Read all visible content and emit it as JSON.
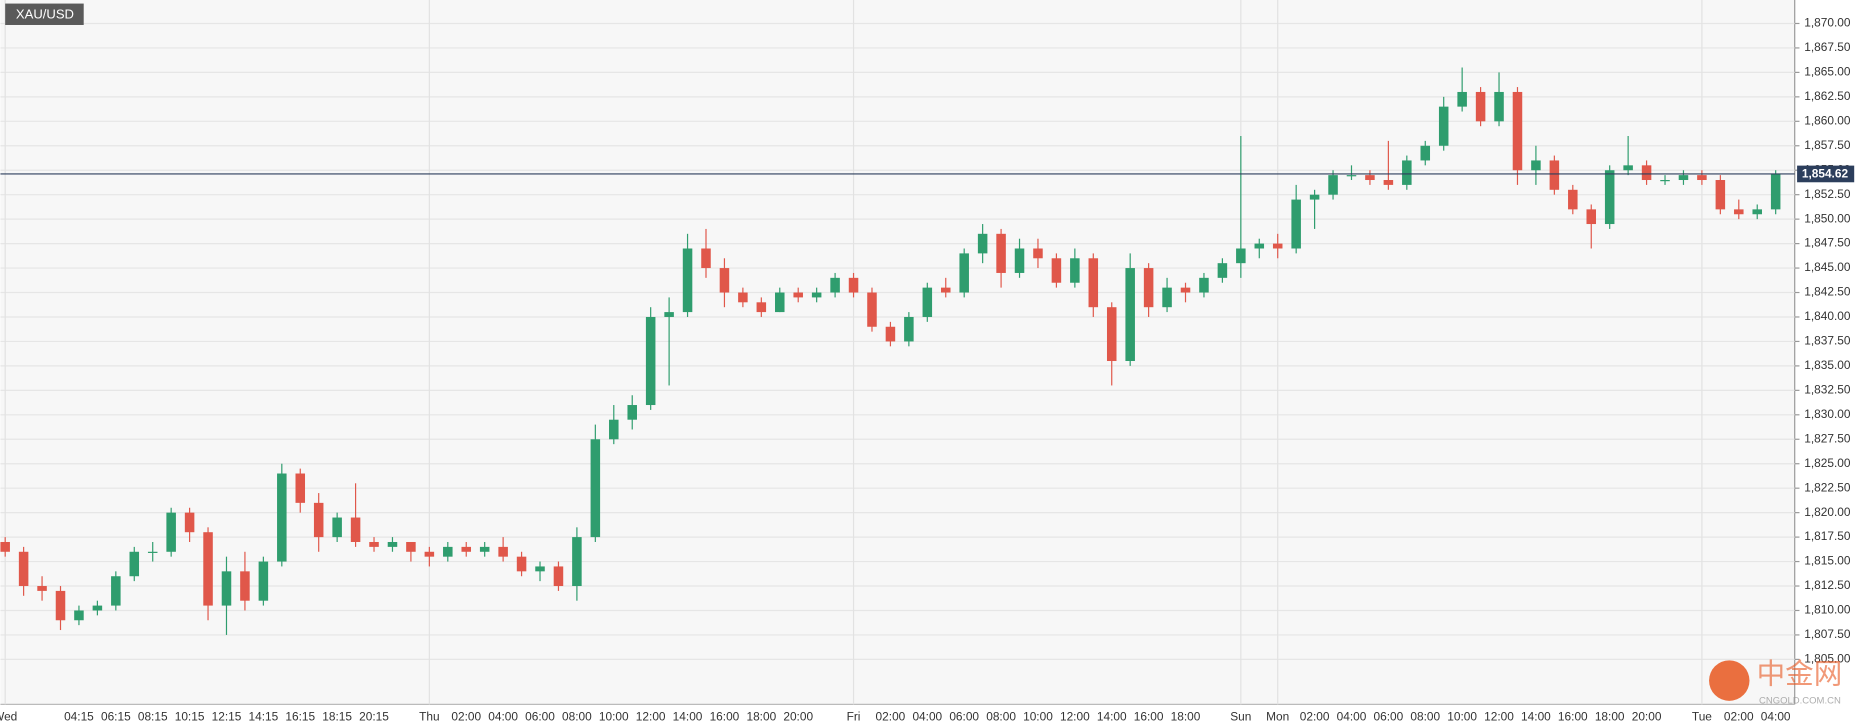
{
  "chart_data": {
    "type": "candlestick",
    "title": "XAU/USD",
    "categories": [
      "Wed",
      null,
      null,
      null,
      "04:15",
      null,
      "06:15",
      null,
      "08:15",
      null,
      "10:15",
      null,
      "12:15",
      null,
      "14:15",
      null,
      "16:15",
      null,
      "18:15",
      null,
      "20:15",
      null,
      null,
      "Thu",
      null,
      "02:00",
      null,
      "04:00",
      null,
      "06:00",
      null,
      "08:00",
      null,
      "10:00",
      null,
      "12:00",
      null,
      "14:00",
      null,
      "16:00",
      null,
      "18:00",
      null,
      "20:00",
      null,
      null,
      "Fri",
      null,
      "02:00",
      null,
      "04:00",
      null,
      "06:00",
      null,
      "08:00",
      null,
      "10:00",
      null,
      "12:00",
      null,
      "14:00",
      null,
      "16:00",
      null,
      "18:00",
      null,
      null,
      "Sun",
      null,
      "Mon",
      null,
      "02:00",
      null,
      "04:00",
      null,
      "06:00",
      null,
      "08:00",
      null,
      "10:00",
      null,
      "12:00",
      null,
      "14:00",
      null,
      "16:00",
      null,
      "18:00",
      null,
      "20:00",
      null,
      null,
      "Tue",
      null,
      "02:00",
      null,
      "04:00"
    ],
    "open": [
      1817,
      1816,
      1812.5,
      1812,
      1809,
      1810,
      1810.5,
      1813.5,
      1816,
      1816,
      1820,
      1818,
      1810.5,
      1814,
      1811,
      1815,
      1824,
      1821,
      1817.5,
      1819.5,
      1817,
      1816.5,
      1817,
      1816,
      1815.5,
      1816.5,
      1816,
      1816.5,
      1815.5,
      1814,
      1814.5,
      1812.5,
      1817.5,
      1827.5,
      1829.5,
      1831,
      1840,
      1840.5,
      1847,
      1845,
      1842.5,
      1841.5,
      1840.5,
      1842.5,
      1842,
      1842.5,
      1844,
      1842.5,
      1839,
      1837.5,
      1840,
      1843,
      1842.5,
      1846.5,
      1848.5,
      1844.5,
      1847,
      1846,
      1843.5,
      1846,
      1841,
      1835.5,
      1845,
      1841,
      1843,
      1842.5,
      1844,
      1845.5,
      1847,
      1847.5,
      1847,
      1852,
      1852.5,
      1854.5,
      1854.5,
      1854,
      1853.5,
      1856,
      1857.5,
      1861.5,
      1863,
      1860,
      1863,
      1855,
      1856,
      1853,
      1851,
      1849.5,
      1855,
      1855.5,
      1854,
      1854,
      1854.5,
      1854,
      1851,
      1850.5,
      1851
    ],
    "high": [
      1817.5,
      1816.5,
      1813.5,
      1812.5,
      1810.5,
      1811,
      1814,
      1816.5,
      1817,
      1820.5,
      1820.5,
      1818.5,
      1815.5,
      1816,
      1815.5,
      1825,
      1824.5,
      1822,
      1820,
      1823,
      1817.5,
      1817.5,
      1817,
      1816.5,
      1817,
      1817,
      1817,
      1817.5,
      1816,
      1815,
      1815,
      1818.5,
      1829,
      1831,
      1832,
      1841,
      1842,
      1848.5,
      1849,
      1846,
      1843,
      1842,
      1843,
      1843,
      1843,
      1844.5,
      1844.5,
      1843,
      1839.5,
      1840.5,
      1843.5,
      1844,
      1847,
      1849.5,
      1849,
      1848,
      1848,
      1846.5,
      1847,
      1846.5,
      1841.5,
      1846.5,
      1845.5,
      1844,
      1843.5,
      1844.5,
      1846,
      1858.5,
      1848,
      1848.5,
      1853.5,
      1853,
      1855,
      1855.5,
      1855,
      1858,
      1856.5,
      1858,
      1862.5,
      1865.5,
      1863.5,
      1865,
      1863.5,
      1857.5,
      1856.5,
      1853.5,
      1851.5,
      1855.5,
      1858.5,
      1856,
      1854.5,
      1855,
      1855,
      1854.5,
      1852,
      1851.5,
      1855
    ],
    "low": [
      1815.5,
      1811.5,
      1811,
      1808,
      1808.5,
      1809.5,
      1810,
      1813,
      1815,
      1815.5,
      1817,
      1809,
      1807.5,
      1810,
      1810.5,
      1814.5,
      1820,
      1816,
      1817,
      1816.5,
      1816,
      1816,
      1815,
      1814.5,
      1815,
      1815.5,
      1815.5,
      1815,
      1813.5,
      1813,
      1812,
      1811,
      1817,
      1827,
      1828.5,
      1830.5,
      1833,
      1840,
      1844,
      1841,
      1841,
      1840,
      1840.5,
      1841.5,
      1841.5,
      1842,
      1842,
      1838.5,
      1837,
      1837,
      1839.5,
      1842,
      1842,
      1845.5,
      1843,
      1844,
      1845,
      1843,
      1843,
      1840,
      1833,
      1835,
      1840,
      1840.5,
      1841.5,
      1842,
      1843.5,
      1844,
      1846,
      1846,
      1846.5,
      1849,
      1852,
      1854,
      1853.5,
      1853,
      1853,
      1855.5,
      1857,
      1861,
      1859.5,
      1859.5,
      1853.5,
      1853.5,
      1852.5,
      1850.5,
      1847,
      1849,
      1854.5,
      1853.5,
      1853.5,
      1853.5,
      1853.5,
      1850.5,
      1850,
      1850,
      1850.5
    ],
    "close": [
      1816,
      1812.5,
      1812,
      1809,
      1810,
      1810.5,
      1813.5,
      1816,
      1816,
      1820,
      1818,
      1810.5,
      1814,
      1811,
      1815,
      1824,
      1821,
      1817.5,
      1819.5,
      1817,
      1816.5,
      1817,
      1816,
      1815.5,
      1816.5,
      1816,
      1816.5,
      1815.5,
      1814,
      1814.5,
      1812.5,
      1817.5,
      1827.5,
      1829.5,
      1831,
      1840,
      1840.5,
      1847,
      1845,
      1842.5,
      1841.5,
      1840.5,
      1842.5,
      1842,
      1842.5,
      1844,
      1842.5,
      1839,
      1837.5,
      1840,
      1843,
      1842.5,
      1846.5,
      1848.5,
      1844.5,
      1847,
      1846,
      1843.5,
      1846,
      1841,
      1835.5,
      1845,
      1841,
      1843,
      1842.5,
      1844,
      1845.5,
      1847,
      1847.5,
      1847,
      1852,
      1852.5,
      1854.5,
      1854.5,
      1854,
      1853.5,
      1856,
      1857.5,
      1861.5,
      1863,
      1860,
      1863,
      1855,
      1856,
      1853,
      1851,
      1849.5,
      1855,
      1855.5,
      1854,
      1854,
      1854.5,
      1854,
      1851,
      1850.5,
      1851,
      1854.62
    ],
    "up_color": "#2f9d6e",
    "down_color": "#e0574a",
    "last_price": {
      "value": 1854.62,
      "label": "1,854.62"
    },
    "ylim": [
      1800.4,
      1872.4
    ],
    "yticks": [
      {
        "value": 1805,
        "label": "1,805.00"
      },
      {
        "value": 1807.5,
        "label": "1,807.50"
      },
      {
        "value": 1810,
        "label": "1,810.00"
      },
      {
        "value": 1812.5,
        "label": "1,812.50"
      },
      {
        "value": 1815,
        "label": "1,815.00"
      },
      {
        "value": 1817.5,
        "label": "1,817.50"
      },
      {
        "value": 1820,
        "label": "1,820.00"
      },
      {
        "value": 1822.5,
        "label": "1,822.50"
      },
      {
        "value": 1825,
        "label": "1,825.00"
      },
      {
        "value": 1827.5,
        "label": "1,827.50"
      },
      {
        "value": 1830,
        "label": "1,830.00"
      },
      {
        "value": 1832.5,
        "label": "1,832.50"
      },
      {
        "value": 1835,
        "label": "1,835.00"
      },
      {
        "value": 1837.5,
        "label": "1,837.50"
      },
      {
        "value": 1840,
        "label": "1,840.00"
      },
      {
        "value": 1842.5,
        "label": "1,842.50"
      },
      {
        "value": 1845,
        "label": "1,845.00"
      },
      {
        "value": 1847.5,
        "label": "1,847.50"
      },
      {
        "value": 1850,
        "label": "1,850.00"
      },
      {
        "value": 1852.5,
        "label": "1,852.50"
      },
      {
        "value": 1855,
        "label": "1,855.00"
      },
      {
        "value": 1857.5,
        "label": "1,857.50"
      },
      {
        "value": 1860,
        "label": "1,860.00"
      },
      {
        "value": 1862.5,
        "label": "1,862.50"
      },
      {
        "value": 1865,
        "label": "1,865.00"
      },
      {
        "value": 1867.5,
        "label": "1,867.50"
      },
      {
        "value": 1870,
        "label": "1,870.00"
      }
    ],
    "grid": true,
    "watermark": "中金网",
    "watermark_url": "CNGOLD.COM.CN"
  }
}
